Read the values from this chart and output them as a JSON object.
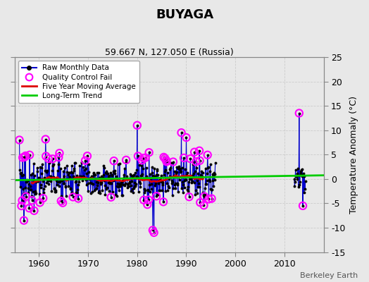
{
  "title": "BUYAGA",
  "subtitle": "59.667 N, 127.050 E (Russia)",
  "ylabel": "Temperature Anomaly (°C)",
  "credit": "Berkeley Earth",
  "bg_color": "#e8e8e8",
  "plot_bg_color": "#e8e8e8",
  "ylim": [
    -15,
    25
  ],
  "yticks": [
    -15,
    -10,
    -5,
    0,
    5,
    10,
    15,
    20,
    25
  ],
  "xlim": [
    1955,
    2018
  ],
  "xticks": [
    1960,
    1970,
    1980,
    1990,
    2000,
    2010
  ],
  "raw_color": "#0000cc",
  "ma_color": "#dd0000",
  "trend_color": "#00cc00",
  "qc_color": "#ff00ff",
  "trend_x": [
    1955,
    2018
  ],
  "trend_y": [
    -0.25,
    0.75
  ],
  "seed": 42
}
